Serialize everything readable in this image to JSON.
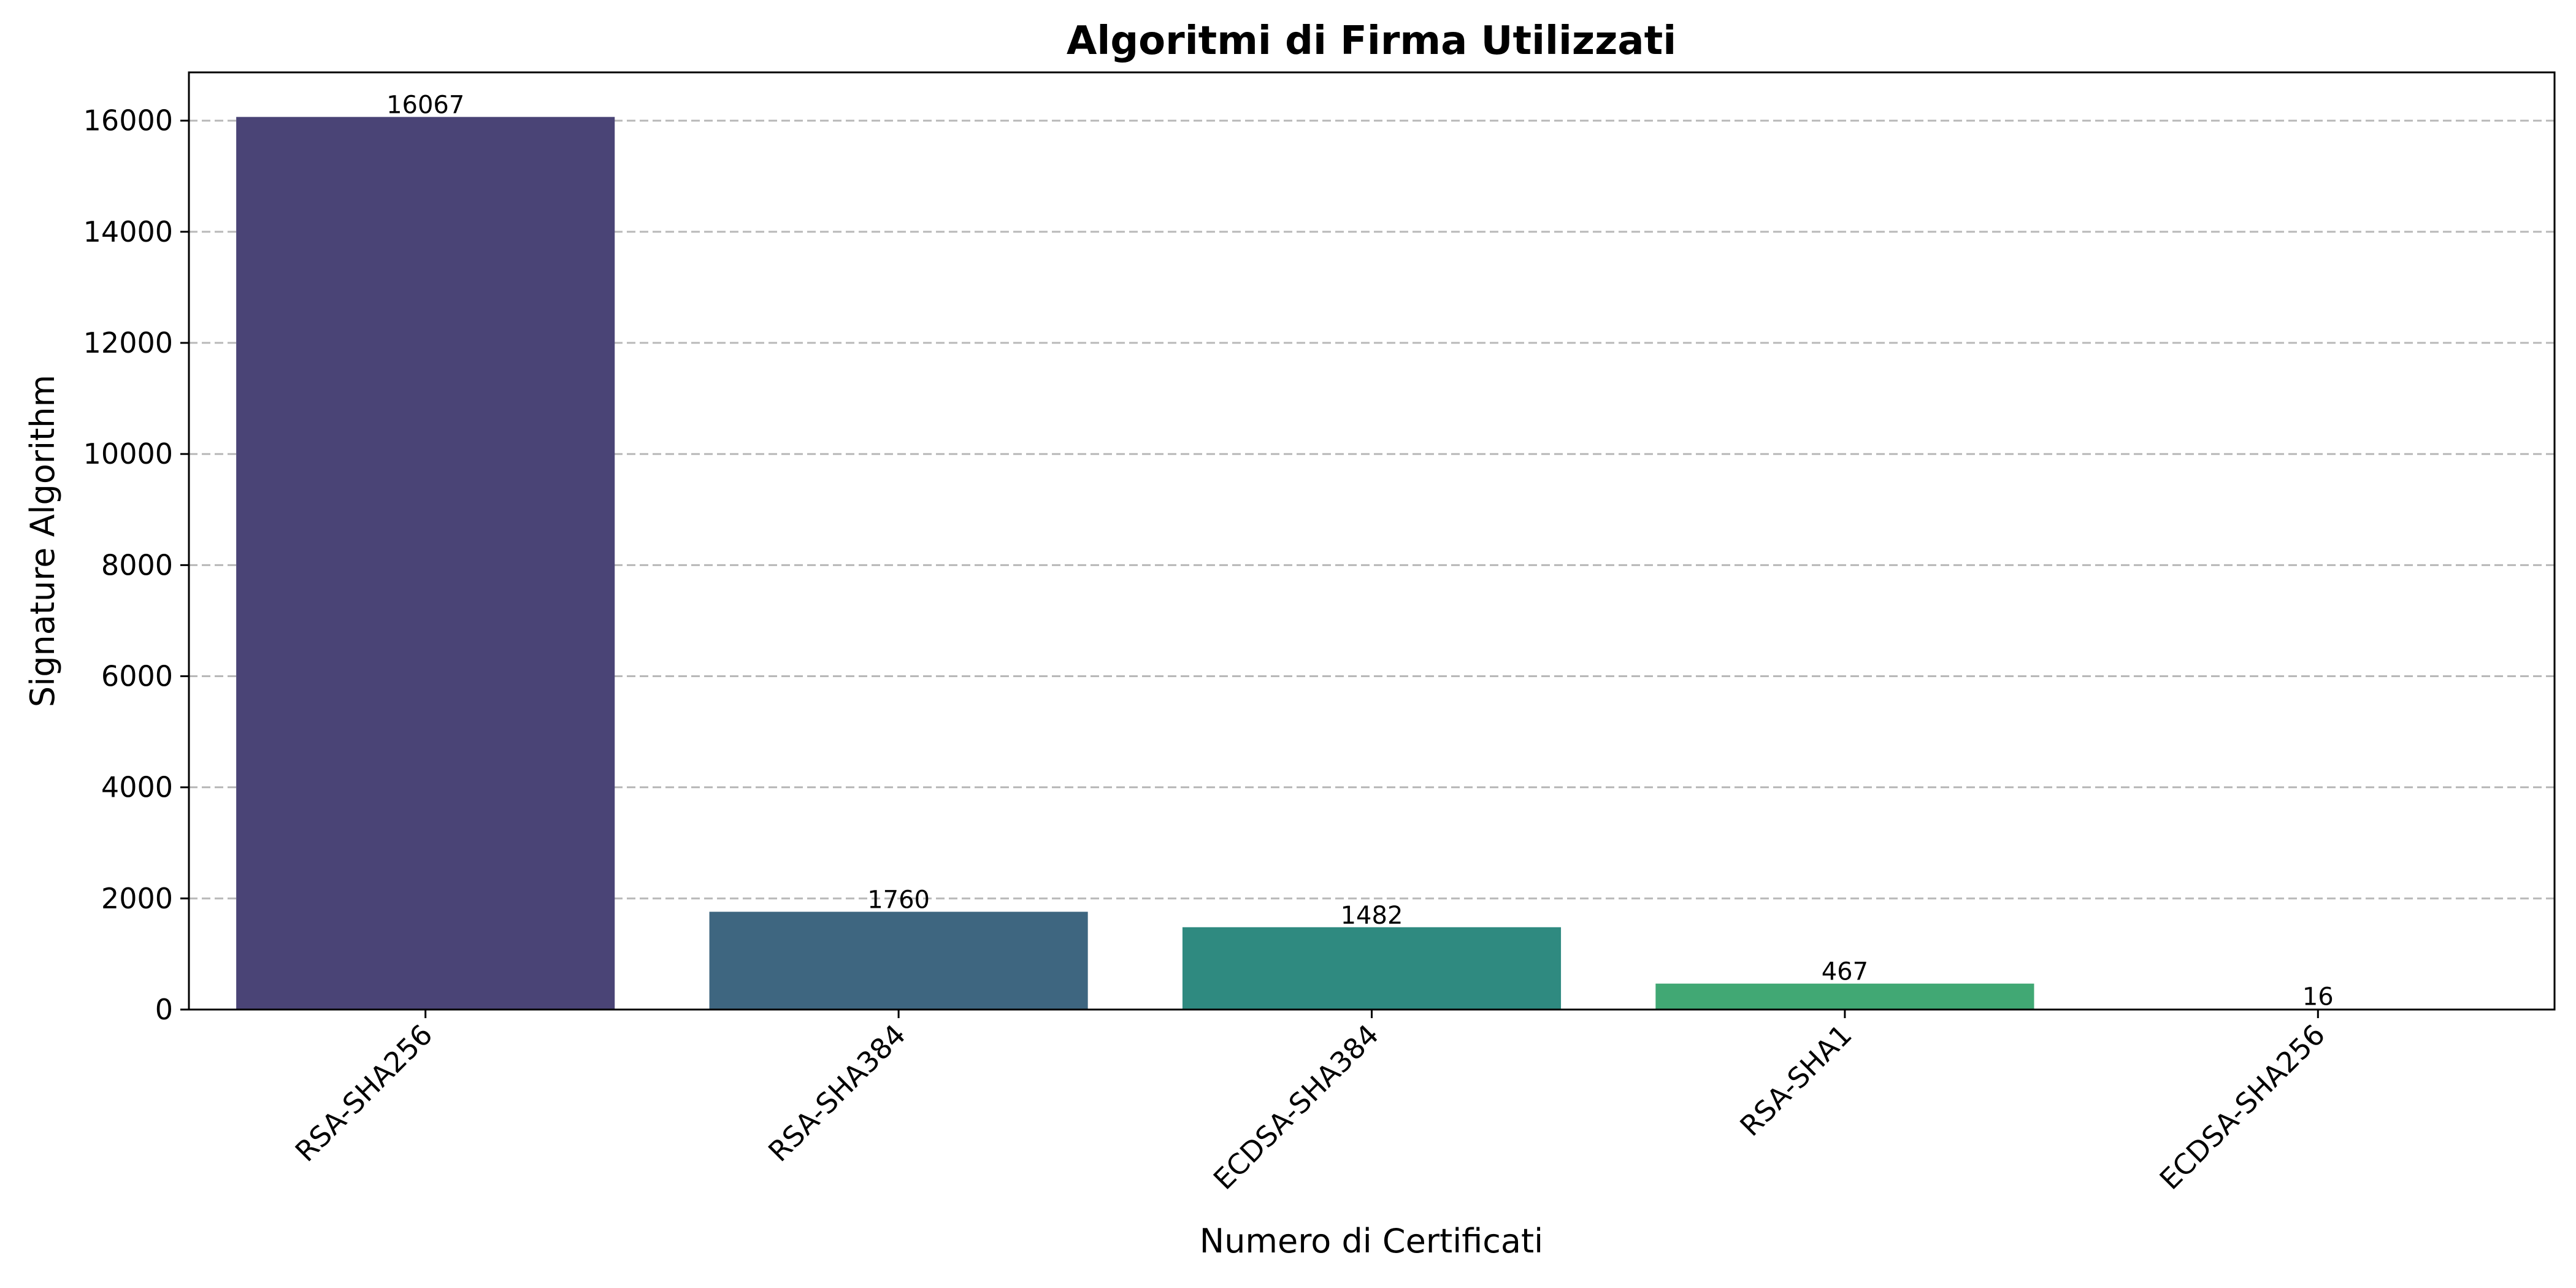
{
  "chart_data": {
    "type": "bar",
    "title": "Algoritmi di Firma Utilizzati",
    "xlabel": "Numero di Certificati",
    "ylabel": "Signature Algorithm",
    "categories": [
      "RSA-SHA256",
      "RSA-SHA384",
      "ECDSA-SHA384",
      "RSA-SHA1",
      "ECDSA-SHA256"
    ],
    "values": [
      16067,
      1760,
      1482,
      467,
      16
    ],
    "value_labels": [
      "16067",
      "1760",
      "1482",
      "467",
      "16"
    ],
    "colors": [
      "#4a4476",
      "#3e6680",
      "#2f8a80",
      "#41a874",
      "#7ac659"
    ],
    "ylim": [
      0,
      16869
    ],
    "yticks": [
      0,
      2000,
      4000,
      6000,
      8000,
      10000,
      12000,
      14000,
      16000
    ],
    "ytick_labels": [
      "0",
      "2000",
      "4000",
      "6000",
      "8000",
      "10000",
      "12000",
      "14000",
      "16000"
    ],
    "grid": "horizontal dashed",
    "legend": "none"
  }
}
